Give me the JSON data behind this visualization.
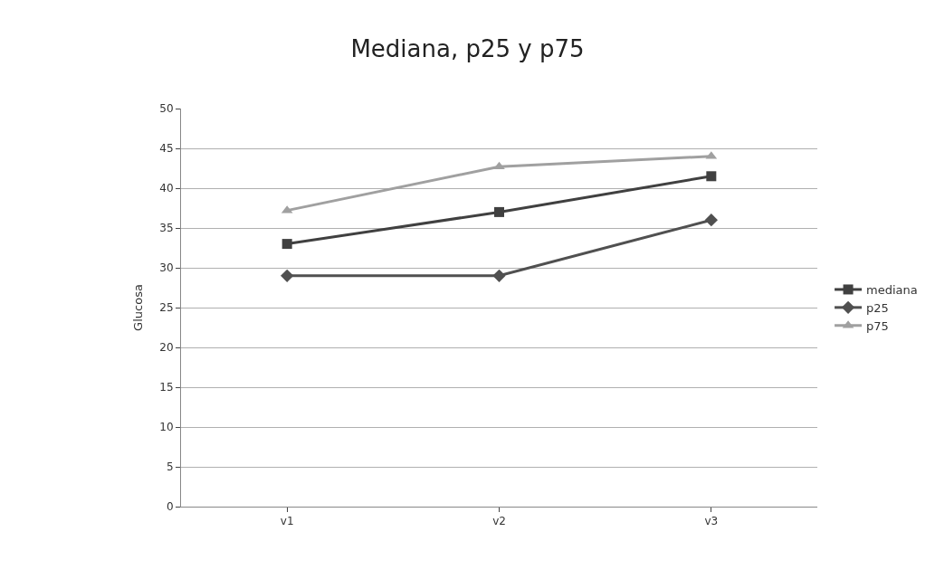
{
  "chart_data": {
    "type": "line",
    "title": "Mediana, p25 y p75",
    "ylabel": "Glucosa",
    "categories": [
      "v1",
      "v2",
      "v3"
    ],
    "series": [
      {
        "name": "mediana",
        "color": "#404040",
        "marker": "square",
        "values": [
          33,
          37,
          41.5
        ]
      },
      {
        "name": "p25",
        "color": "#505050",
        "marker": "diamond",
        "values": [
          29,
          29,
          36
        ]
      },
      {
        "name": "p75",
        "color": "#a0a0a0",
        "marker": "triangle",
        "values": [
          37.2,
          42.7,
          44
        ]
      }
    ],
    "ylim": [
      0,
      50
    ],
    "yticks": [
      0,
      5,
      10,
      15,
      20,
      25,
      30,
      35,
      40,
      45,
      50
    ],
    "grid": "y",
    "legend": "right"
  }
}
